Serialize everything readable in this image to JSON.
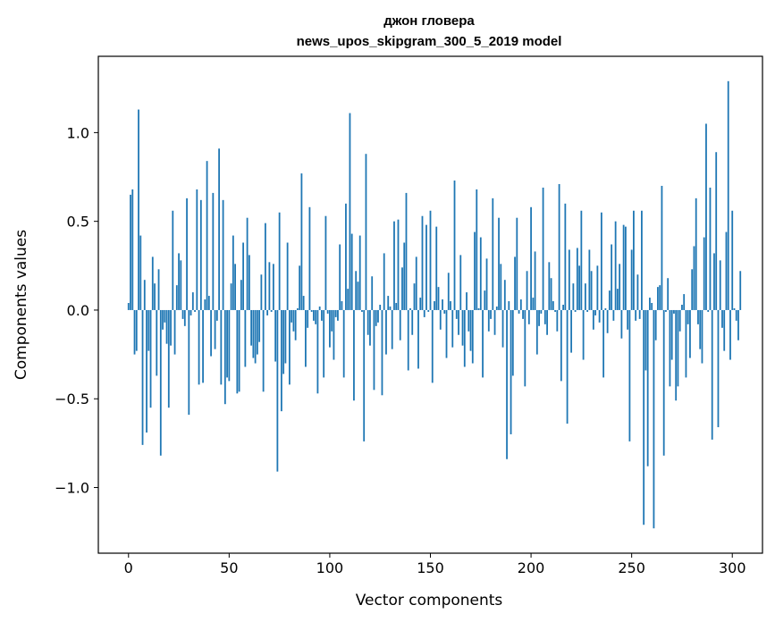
{
  "chart_data": {
    "type": "bar",
    "title_line1": "джон гловера",
    "title_line2": "news_upos_skipgram_300_5_2019 model",
    "xlabel": "Vector components",
    "ylabel": "Components values",
    "xlim": [
      -15,
      315
    ],
    "ylim": [
      -1.37,
      1.43
    ],
    "xticks": [
      0,
      50,
      100,
      150,
      200,
      250,
      300
    ],
    "xtick_labels": [
      "0",
      "50",
      "100",
      "150",
      "200",
      "250",
      "300"
    ],
    "yticks": [
      -1.0,
      -0.5,
      0.0,
      0.5,
      1.0
    ],
    "ytick_labels": [
      "−1.0",
      "−0.5",
      "0.0",
      "0.5",
      "1.0"
    ],
    "bar_color": "#1f77b4",
    "values": [
      0.04,
      0.65,
      0.68,
      -0.25,
      -0.23,
      1.13,
      0.42,
      -0.76,
      0.17,
      -0.69,
      -0.23,
      -0.55,
      0.3,
      0.15,
      -0.37,
      0.23,
      -0.82,
      -0.11,
      -0.07,
      -0.19,
      -0.55,
      -0.2,
      0.56,
      -0.25,
      0.14,
      0.32,
      0.28,
      -0.05,
      -0.09,
      0.63,
      -0.59,
      -0.03,
      0.1,
      -0.01,
      0.68,
      -0.42,
      0.62,
      -0.41,
      0.06,
      0.84,
      0.08,
      -0.26,
      0.66,
      -0.22,
      -0.06,
      0.91,
      -0.42,
      0.62,
      -0.53,
      -0.38,
      -0.4,
      0.15,
      0.42,
      0.26,
      -0.47,
      -0.46,
      0.17,
      0.38,
      -0.32,
      0.52,
      0.31,
      -0.2,
      -0.27,
      -0.3,
      -0.25,
      -0.18,
      0.2,
      -0.46,
      0.49,
      -0.03,
      0.27,
      -0.01,
      0.26,
      -0.29,
      -0.91,
      0.55,
      -0.57,
      -0.36,
      -0.3,
      0.38,
      -0.42,
      -0.07,
      -0.12,
      -0.17,
      0.01,
      0.25,
      0.77,
      0.08,
      -0.32,
      -0.1,
      0.58,
      -0.01,
      -0.06,
      -0.08,
      -0.47,
      0.02,
      -0.06,
      -0.38,
      0.53,
      -0.02,
      -0.21,
      -0.12,
      -0.28,
      -0.04,
      -0.06,
      0.37,
      0.05,
      -0.38,
      0.6,
      0.12,
      1.11,
      0.43,
      -0.51,
      0.22,
      0.16,
      0.42,
      -0.01,
      -0.74,
      0.88,
      -0.14,
      -0.2,
      0.19,
      -0.45,
      -0.09,
      -0.07,
      0.03,
      -0.48,
      0.32,
      -0.25,
      0.08,
      0.02,
      -0.22,
      0.5,
      0.04,
      0.51,
      -0.17,
      0.24,
      0.38,
      0.66,
      -0.34,
      0.01,
      -0.14,
      0.15,
      0.3,
      -0.33,
      0.07,
      0.53,
      -0.04,
      0.48,
      -0.01,
      0.56,
      -0.41,
      0.05,
      0.47,
      0.13,
      -0.11,
      0.06,
      -0.02,
      -0.27,
      0.21,
      0.05,
      -0.21,
      0.73,
      -0.05,
      -0.14,
      0.31,
      -0.2,
      -0.32,
      0.1,
      -0.12,
      -0.23,
      -0.3,
      0.44,
      0.68,
      0.01,
      0.41,
      -0.38,
      0.11,
      0.29,
      -0.12,
      -0.05,
      0.63,
      -0.14,
      0.02,
      0.52,
      0.26,
      -0.21,
      0.17,
      -0.84,
      0.05,
      -0.7,
      -0.37,
      0.3,
      0.52,
      -0.02,
      0.06,
      -0.05,
      -0.43,
      0.22,
      -0.08,
      0.58,
      0.07,
      0.33,
      -0.25,
      -0.09,
      -0.02,
      0.69,
      -0.08,
      -0.14,
      0.27,
      0.18,
      0.05,
      -0.01,
      -0.12,
      0.71,
      -0.4,
      0.03,
      0.6,
      -0.64,
      0.34,
      -0.24,
      0.15,
      -0.01,
      0.35,
      0.25,
      0.56,
      -0.28,
      0.15,
      -0.01,
      0.34,
      0.22,
      -0.11,
      -0.03,
      0.25,
      -0.07,
      0.55,
      -0.38,
      0.01,
      -0.13,
      0.11,
      0.37,
      -0.06,
      0.5,
      0.12,
      0.26,
      -0.16,
      0.48,
      0.47,
      -0.11,
      -0.74,
      0.34,
      0.56,
      -0.06,
      0.2,
      -0.05,
      0.56,
      -1.21,
      -0.34,
      -0.88,
      0.07,
      0.04,
      -1.23,
      -0.17,
      0.13,
      0.14,
      0.7,
      -0.82,
      -0.01,
      0.18,
      -0.43,
      -0.28,
      -0.02,
      -0.51,
      -0.43,
      -0.12,
      0.03,
      0.09,
      -0.38,
      -0.08,
      -0.27,
      0.23,
      0.36,
      0.63,
      -0.08,
      -0.22,
      -0.3,
      0.41,
      1.05,
      -0.01,
      0.69,
      -0.73,
      0.32,
      0.89,
      -0.66,
      0.28,
      -0.1,
      -0.23,
      0.44,
      1.29,
      -0.28,
      0.56,
      0.01,
      -0.06,
      -0.17,
      0.22
    ]
  }
}
